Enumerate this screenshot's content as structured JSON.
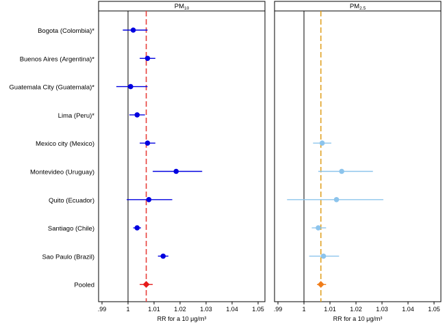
{
  "chart_data": [
    {
      "type": "forest",
      "title": "PM10",
      "title_base": "PM",
      "title_sub": "10",
      "xlabel": "RR for a 10 μg/m³",
      "xlim": [
        0.99,
        1.05
      ],
      "xticks": [
        0.99,
        1.0,
        1.01,
        1.02,
        1.03,
        1.04,
        1.05
      ],
      "xtick_labels": [
        ".99",
        "1",
        "1.01",
        "1.02",
        "1.03",
        "1.04",
        "1.05"
      ],
      "reference_line": 1.0,
      "pooled_line": 1.007,
      "pooled_line_color": "#e8413c",
      "categories": [
        "Bogota (Colombia)*",
        "Buenos Aires (Argentina)*",
        "Guatemala City (Guatemala)*",
        "Lima (Peru)*",
        "Mexico city (Mexico)",
        "Montevideo (Uruguay)",
        "Quito (Ecuador)",
        "Santiago (Chile)",
        "Sao Paulo (Brazil)",
        "Pooled"
      ],
      "estimates": [
        {
          "rr": 1.002,
          "lo": 0.998,
          "hi": 1.0075,
          "color": "#0000e0"
        },
        {
          "rr": 1.0075,
          "lo": 1.0045,
          "hi": 1.0105,
          "color": "#0000e0"
        },
        {
          "rr": 1.001,
          "lo": 0.9955,
          "hi": 1.0075,
          "color": "#0000e0"
        },
        {
          "rr": 1.0035,
          "lo": 1.0005,
          "hi": 1.0065,
          "color": "#0000e0"
        },
        {
          "rr": 1.0075,
          "lo": 1.0045,
          "hi": 1.0105,
          "color": "#0000e0"
        },
        {
          "rr": 1.0185,
          "lo": 1.0095,
          "hi": 1.0285,
          "color": "#0000e0"
        },
        {
          "rr": 1.008,
          "lo": 0.9995,
          "hi": 1.017,
          "color": "#0000e0"
        },
        {
          "rr": 1.0035,
          "lo": 1.002,
          "hi": 1.005,
          "color": "#0000e0"
        },
        {
          "rr": 1.0135,
          "lo": 1.0115,
          "hi": 1.0155,
          "color": "#0000e0"
        },
        {
          "rr": 1.007,
          "lo": 1.0045,
          "hi": 1.0095,
          "color": "#e61a1a",
          "marker": "diamond"
        }
      ]
    },
    {
      "type": "forest",
      "title": "PM2.5",
      "title_base": "PM",
      "title_sub": "2.5",
      "xlabel": "RR for a 10 μg/m³",
      "xlim": [
        0.99,
        1.05
      ],
      "xticks": [
        0.99,
        1.0,
        1.01,
        1.02,
        1.03,
        1.04,
        1.05
      ],
      "xtick_labels": [
        ".99",
        "1",
        "1.01",
        "1.02",
        "1.03",
        "1.04",
        "1.05"
      ],
      "reference_line": 1.0,
      "pooled_line": 1.0065,
      "pooled_line_color": "#e0a020",
      "estimates": [
        null,
        null,
        null,
        null,
        {
          "rr": 1.007,
          "lo": 1.0035,
          "hi": 1.0105,
          "color": "#8cc4ec"
        },
        {
          "rr": 1.0145,
          "lo": 1.0055,
          "hi": 1.0265,
          "color": "#8cc4ec"
        },
        {
          "rr": 1.0125,
          "lo": 0.9935,
          "hi": 1.0305,
          "color": "#8cc4ec"
        },
        {
          "rr": 1.0055,
          "lo": 1.003,
          "hi": 1.0085,
          "color": "#8cc4ec"
        },
        {
          "rr": 1.0075,
          "lo": 1.002,
          "hi": 1.0135,
          "color": "#8cc4ec"
        },
        {
          "rr": 1.0065,
          "lo": 1.005,
          "hi": 1.0085,
          "color": "#f07d1a",
          "marker": "diamond"
        }
      ]
    }
  ]
}
